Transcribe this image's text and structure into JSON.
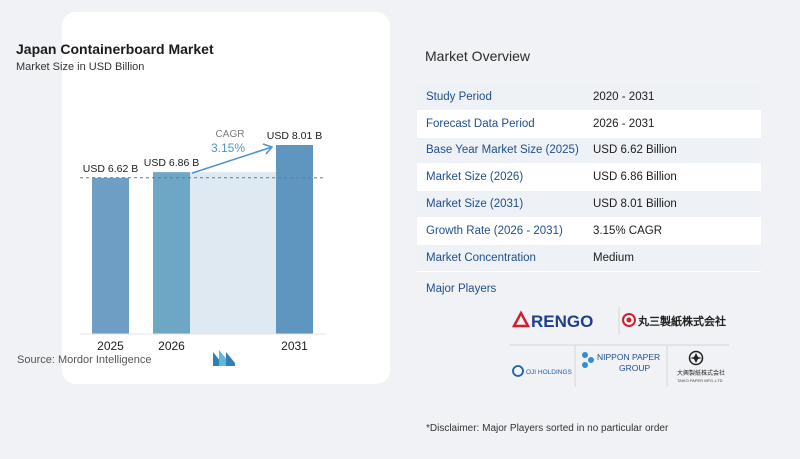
{
  "chart_card": {
    "title": "Japan Containerboard Market",
    "subtitle": "Market Size in USD Billion",
    "source": "Source: Mordor Intelligence"
  },
  "chart_data": {
    "type": "bar",
    "title": "Japan Containerboard Market",
    "subtitle": "Market Size in USD Billion",
    "categories": [
      "2025",
      "2026",
      "2031"
    ],
    "values": [
      6.62,
      6.86,
      8.01
    ],
    "data_labels": [
      "USD 6.62 B",
      "USD 6.86 B",
      "USD 8.01 B"
    ],
    "cagr_label": "CAGR",
    "cagr_value": "3.15%",
    "reference_line_value": 6.62,
    "ylim": [
      0,
      8.9
    ],
    "bar_colors": [
      "#6f9ec4",
      "#6ea6c6",
      "#5f96c0"
    ],
    "gap_fill_color": "#dfe9f2",
    "accent_color": "#4d96c8"
  },
  "overview": {
    "title": "Market Overview",
    "rows": [
      {
        "label": "Study Period",
        "value": "2020 - 2031"
      },
      {
        "label": "Forecast Data Period",
        "value": "2026 - 2031"
      },
      {
        "label": "Base Year Market Size (2025)",
        "value": "USD 6.62 Billion"
      },
      {
        "label": "Market Size (2026)",
        "value": "USD 6.86 Billion"
      },
      {
        "label": "Market Size (2031)",
        "value": "USD 8.01 Billion"
      },
      {
        "label": "Growth Rate (2026 - 2031)",
        "value": "3.15% CAGR"
      },
      {
        "label": "Market Concentration",
        "value": "Medium"
      }
    ],
    "players_label": "Major Players"
  },
  "players": {
    "rengo": "RENGO",
    "marusan": "丸三製紙株式会社",
    "oji": "OJI HOLDINGS",
    "nippon_line1": "NIPPON PAPER",
    "nippon_line2": "GROUP",
    "daio": "大興製紙株式会社",
    "daio_en": "TAIKO PAPER MFG.,LTD"
  },
  "disclaimer": "*Disclaimer: Major Players sorted in no particular order"
}
